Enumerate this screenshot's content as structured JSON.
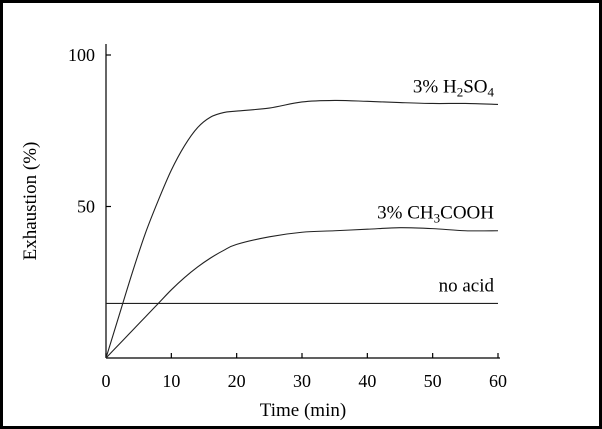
{
  "chart_data": {
    "type": "line",
    "xlabel": "Time (min)",
    "ylabel": "Exhaustion (%)",
    "xlim": [
      0,
      60
    ],
    "ylim": [
      0,
      100
    ],
    "xticks": [
      0,
      10,
      20,
      30,
      40,
      50,
      60
    ],
    "yticks": [
      50,
      100
    ],
    "grid": false,
    "series": [
      {
        "name": "3% H₂SO₄",
        "label_parts": [
          {
            "text": "3% H",
            "sub": false
          },
          {
            "text": "2",
            "sub": true
          },
          {
            "text": "SO",
            "sub": false
          },
          {
            "text": "4",
            "sub": true
          }
        ],
        "x": [
          0,
          2,
          4,
          6,
          8,
          10,
          12,
          14,
          16,
          18,
          20,
          25,
          30,
          35,
          40,
          45,
          50,
          55,
          60
        ],
        "y": [
          0,
          14,
          28,
          41,
          52,
          62,
          70,
          76,
          79.5,
          81,
          81.5,
          82.5,
          84.5,
          85,
          84.7,
          84.3,
          84,
          84,
          83.7
        ]
      },
      {
        "name": "3% CH₃COOH",
        "label_parts": [
          {
            "text": "3% CH",
            "sub": false
          },
          {
            "text": "3",
            "sub": true
          },
          {
            "text": "COOH",
            "sub": false
          }
        ],
        "x": [
          0,
          2,
          4,
          6,
          8,
          10,
          12,
          14,
          16,
          18,
          20,
          25,
          30,
          35,
          40,
          45,
          50,
          55,
          60
        ],
        "y": [
          0,
          4.5,
          9,
          13.5,
          18,
          22.5,
          26.5,
          30,
          33,
          35.5,
          37.5,
          40,
          41.5,
          42,
          42.5,
          43,
          42.7,
          42,
          42
        ]
      },
      {
        "name": "no acid",
        "label_parts": [
          {
            "text": "no acid",
            "sub": false
          }
        ],
        "x": [
          0,
          60
        ],
        "y": [
          18,
          18
        ]
      }
    ]
  }
}
